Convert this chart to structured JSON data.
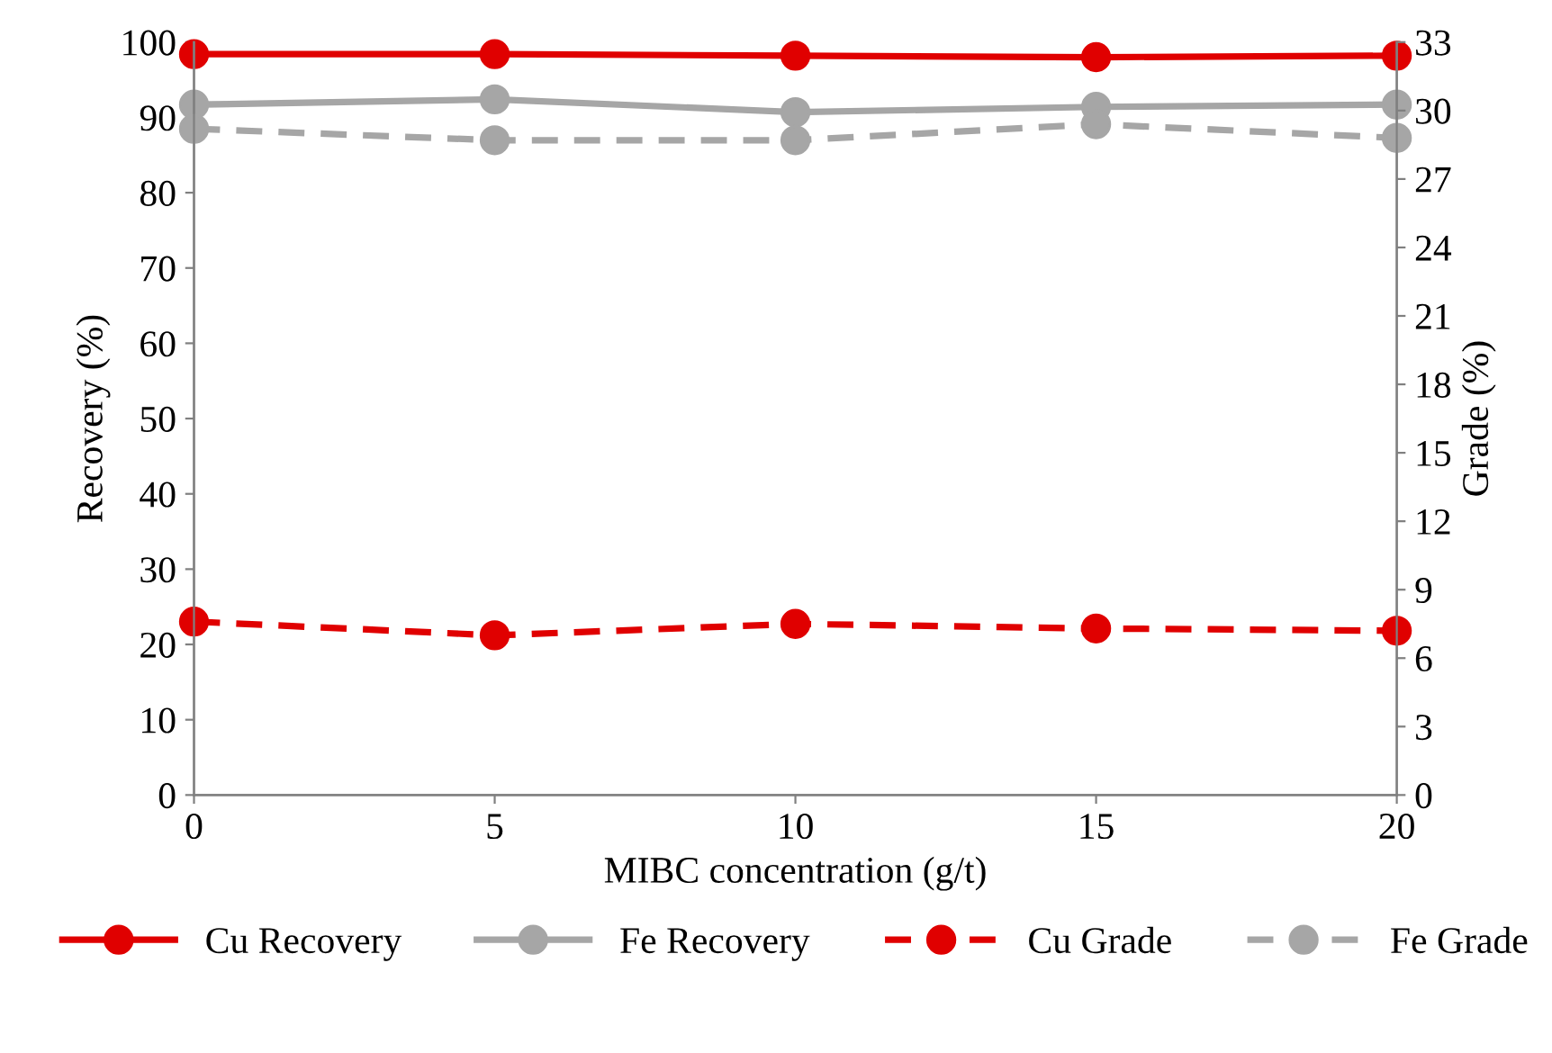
{
  "chart_data": {
    "type": "line",
    "xlabel": "MIBC concentration (g/t)",
    "ylabel": "Recovery (%)",
    "y2label": "Grade (%)",
    "x": [
      0,
      5,
      10,
      15,
      20
    ],
    "xlim": [
      0,
      20
    ],
    "xticks": [
      0,
      5,
      10,
      15,
      20
    ],
    "ylim": [
      0,
      100
    ],
    "yticks": [
      0,
      10,
      20,
      30,
      40,
      50,
      60,
      70,
      80,
      90,
      100
    ],
    "y2lim": [
      0,
      33
    ],
    "y2ticks": [
      0,
      3,
      6,
      9,
      12,
      15,
      18,
      21,
      24,
      27,
      30,
      33
    ],
    "marker": "circle",
    "grid": false,
    "legend": "bottom",
    "series": [
      {
        "name": "Cu Recovery",
        "color": "#e00000",
        "values": [
          98.4,
          98.4,
          98.2,
          98.0,
          98.2
        ],
        "line_style": "solid"
      },
      {
        "name": "Fe Recovery",
        "color": "#a6a6a6",
        "values": [
          91.7,
          92.4,
          90.7,
          91.4,
          91.7
        ],
        "line_style": "solid"
      },
      {
        "name": "Cu Grade",
        "color": "#e00000",
        "values": [
          7.6,
          7.0,
          7.5,
          7.3,
          7.2
        ],
        "line_style": "dashed",
        "axis": "y2"
      },
      {
        "name": "Fe Grade",
        "color": "#a6a6a6",
        "values": [
          29.2,
          28.7,
          28.7,
          29.4,
          28.8
        ],
        "line_style": "dashed",
        "axis": "y2"
      }
    ]
  }
}
